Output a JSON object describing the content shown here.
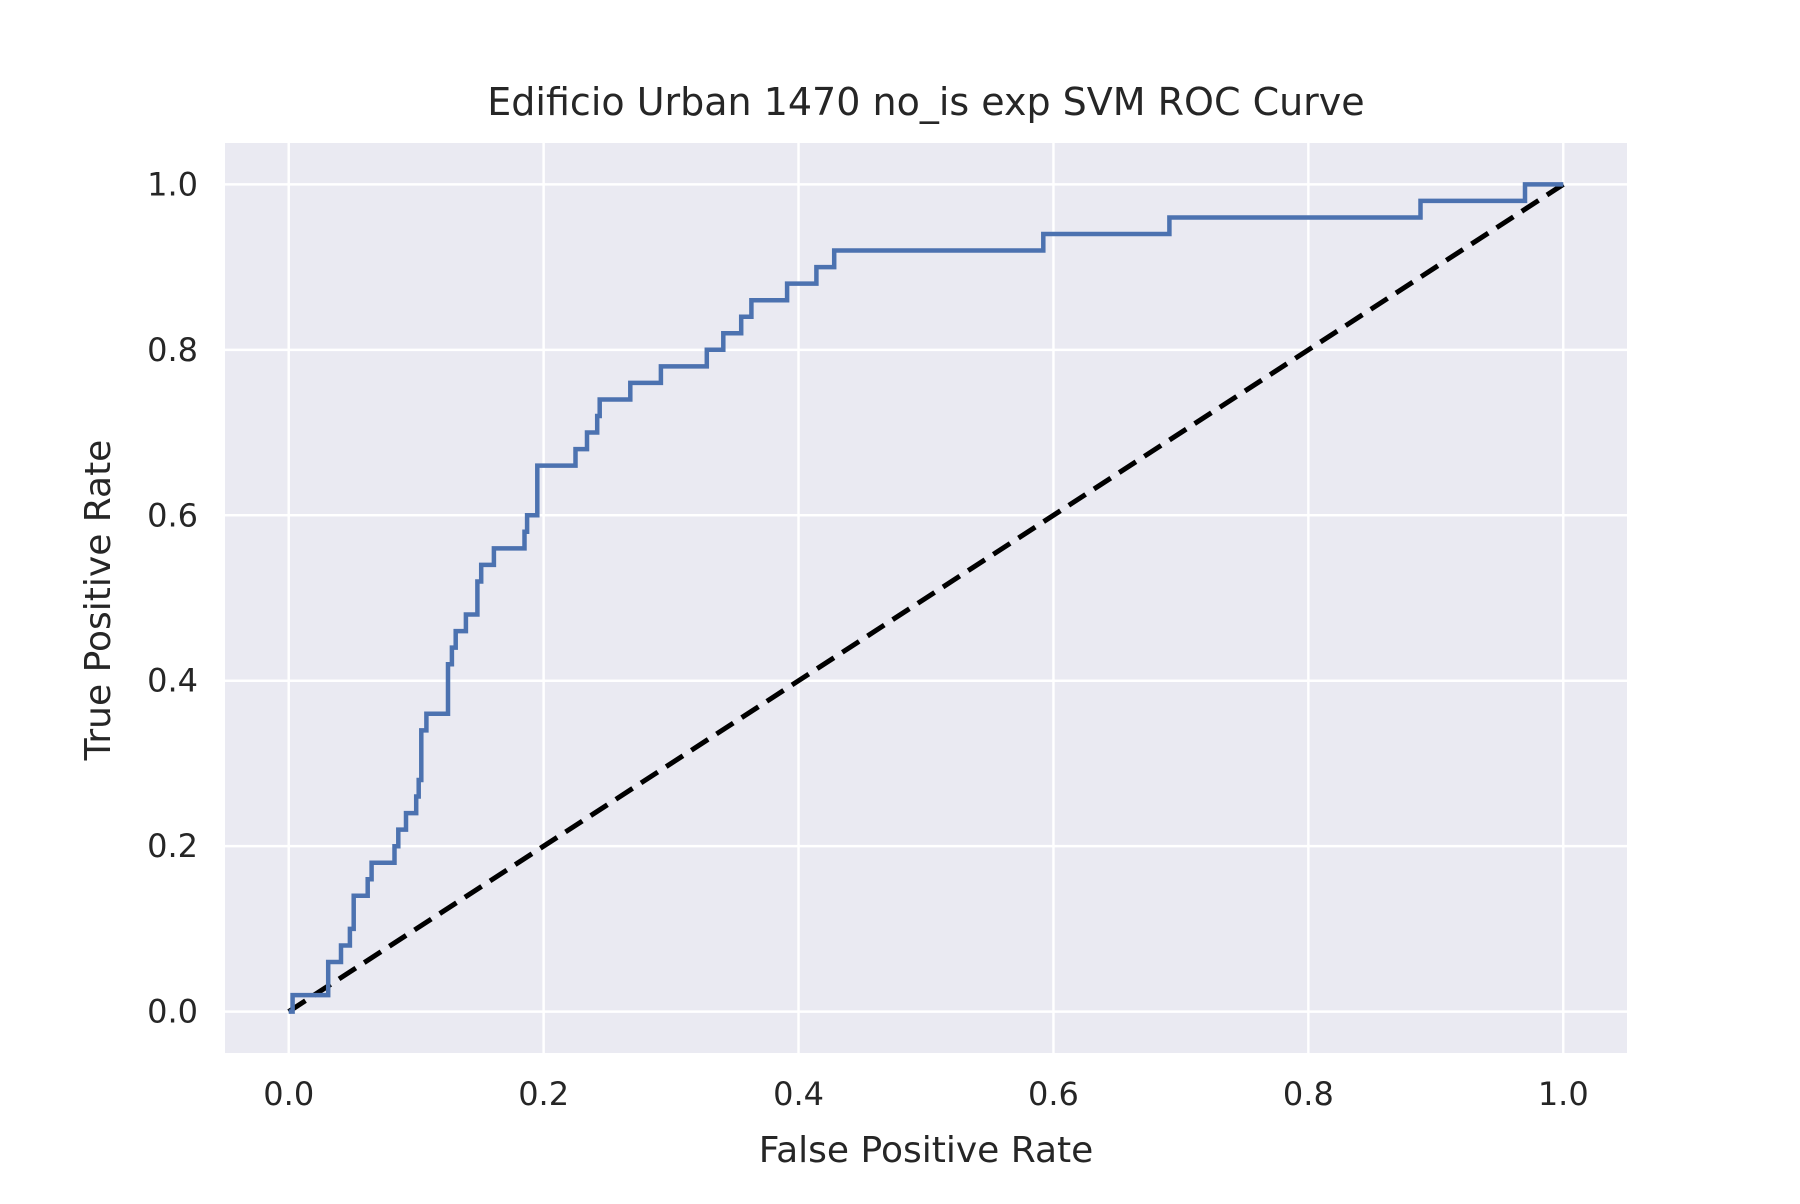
{
  "chart_data": {
    "type": "line",
    "title": "Edificio Urban 1470 no_is exp SVM ROC Curve",
    "xlabel": "False Positive Rate",
    "ylabel": "True Positive Rate",
    "xlim": [
      -0.05,
      1.05
    ],
    "ylim": [
      -0.05,
      1.05
    ],
    "xticks": [
      0.0,
      0.2,
      0.4,
      0.6,
      0.8,
      1.0
    ],
    "xtick_labels": [
      "0.0",
      "0.2",
      "0.4",
      "0.6",
      "0.8",
      "1.0"
    ],
    "yticks": [
      0.0,
      0.2,
      0.4,
      0.6,
      0.8,
      1.0
    ],
    "ytick_labels": [
      "0.0",
      "0.2",
      "0.4",
      "0.6",
      "0.8",
      "1.0"
    ],
    "grid": true,
    "colors": {
      "background": "#eaeaf2",
      "grid": "#ffffff",
      "roc": "#4c72b0",
      "chance": "#000000"
    },
    "series": [
      {
        "style": "solid",
        "color": "#4c72b0",
        "points": [
          [
            0.0,
            0.0
          ],
          [
            0.003,
            0.0
          ],
          [
            0.003,
            0.02
          ],
          [
            0.031,
            0.02
          ],
          [
            0.031,
            0.06
          ],
          [
            0.041,
            0.06
          ],
          [
            0.041,
            0.08
          ],
          [
            0.048,
            0.08
          ],
          [
            0.048,
            0.1
          ],
          [
            0.051,
            0.1
          ],
          [
            0.051,
            0.14
          ],
          [
            0.062,
            0.14
          ],
          [
            0.062,
            0.16
          ],
          [
            0.065,
            0.16
          ],
          [
            0.065,
            0.18
          ],
          [
            0.083,
            0.18
          ],
          [
            0.083,
            0.2
          ],
          [
            0.086,
            0.2
          ],
          [
            0.086,
            0.22
          ],
          [
            0.092,
            0.22
          ],
          [
            0.092,
            0.24
          ],
          [
            0.1,
            0.24
          ],
          [
            0.1,
            0.26
          ],
          [
            0.102,
            0.26
          ],
          [
            0.102,
            0.28
          ],
          [
            0.104,
            0.28
          ],
          [
            0.104,
            0.34
          ],
          [
            0.108,
            0.34
          ],
          [
            0.108,
            0.36
          ],
          [
            0.125,
            0.36
          ],
          [
            0.125,
            0.42
          ],
          [
            0.128,
            0.42
          ],
          [
            0.128,
            0.44
          ],
          [
            0.131,
            0.44
          ],
          [
            0.131,
            0.46
          ],
          [
            0.139,
            0.46
          ],
          [
            0.139,
            0.48
          ],
          [
            0.148,
            0.48
          ],
          [
            0.148,
            0.52
          ],
          [
            0.151,
            0.52
          ],
          [
            0.151,
            0.54
          ],
          [
            0.161,
            0.54
          ],
          [
            0.161,
            0.56
          ],
          [
            0.185,
            0.56
          ],
          [
            0.185,
            0.58
          ],
          [
            0.187,
            0.58
          ],
          [
            0.187,
            0.6
          ],
          [
            0.195,
            0.6
          ],
          [
            0.195,
            0.66
          ],
          [
            0.225,
            0.66
          ],
          [
            0.225,
            0.68
          ],
          [
            0.234,
            0.68
          ],
          [
            0.234,
            0.7
          ],
          [
            0.242,
            0.7
          ],
          [
            0.242,
            0.72
          ],
          [
            0.244,
            0.72
          ],
          [
            0.244,
            0.74
          ],
          [
            0.268,
            0.74
          ],
          [
            0.268,
            0.76
          ],
          [
            0.292,
            0.76
          ],
          [
            0.292,
            0.78
          ],
          [
            0.328,
            0.78
          ],
          [
            0.328,
            0.8
          ],
          [
            0.341,
            0.8
          ],
          [
            0.341,
            0.82
          ],
          [
            0.355,
            0.82
          ],
          [
            0.355,
            0.84
          ],
          [
            0.363,
            0.84
          ],
          [
            0.363,
            0.86
          ],
          [
            0.391,
            0.86
          ],
          [
            0.391,
            0.88
          ],
          [
            0.414,
            0.88
          ],
          [
            0.414,
            0.9
          ],
          [
            0.428,
            0.9
          ],
          [
            0.428,
            0.92
          ],
          [
            0.592,
            0.92
          ],
          [
            0.592,
            0.94
          ],
          [
            0.691,
            0.94
          ],
          [
            0.691,
            0.96
          ],
          [
            0.888,
            0.96
          ],
          [
            0.888,
            0.98
          ],
          [
            0.97,
            0.98
          ],
          [
            0.97,
            1.0
          ],
          [
            1.0,
            1.0
          ]
        ]
      },
      {
        "style": "dashed",
        "color": "#000000",
        "points": [
          [
            0.0,
            0.0
          ],
          [
            1.0,
            1.0
          ]
        ]
      }
    ]
  }
}
